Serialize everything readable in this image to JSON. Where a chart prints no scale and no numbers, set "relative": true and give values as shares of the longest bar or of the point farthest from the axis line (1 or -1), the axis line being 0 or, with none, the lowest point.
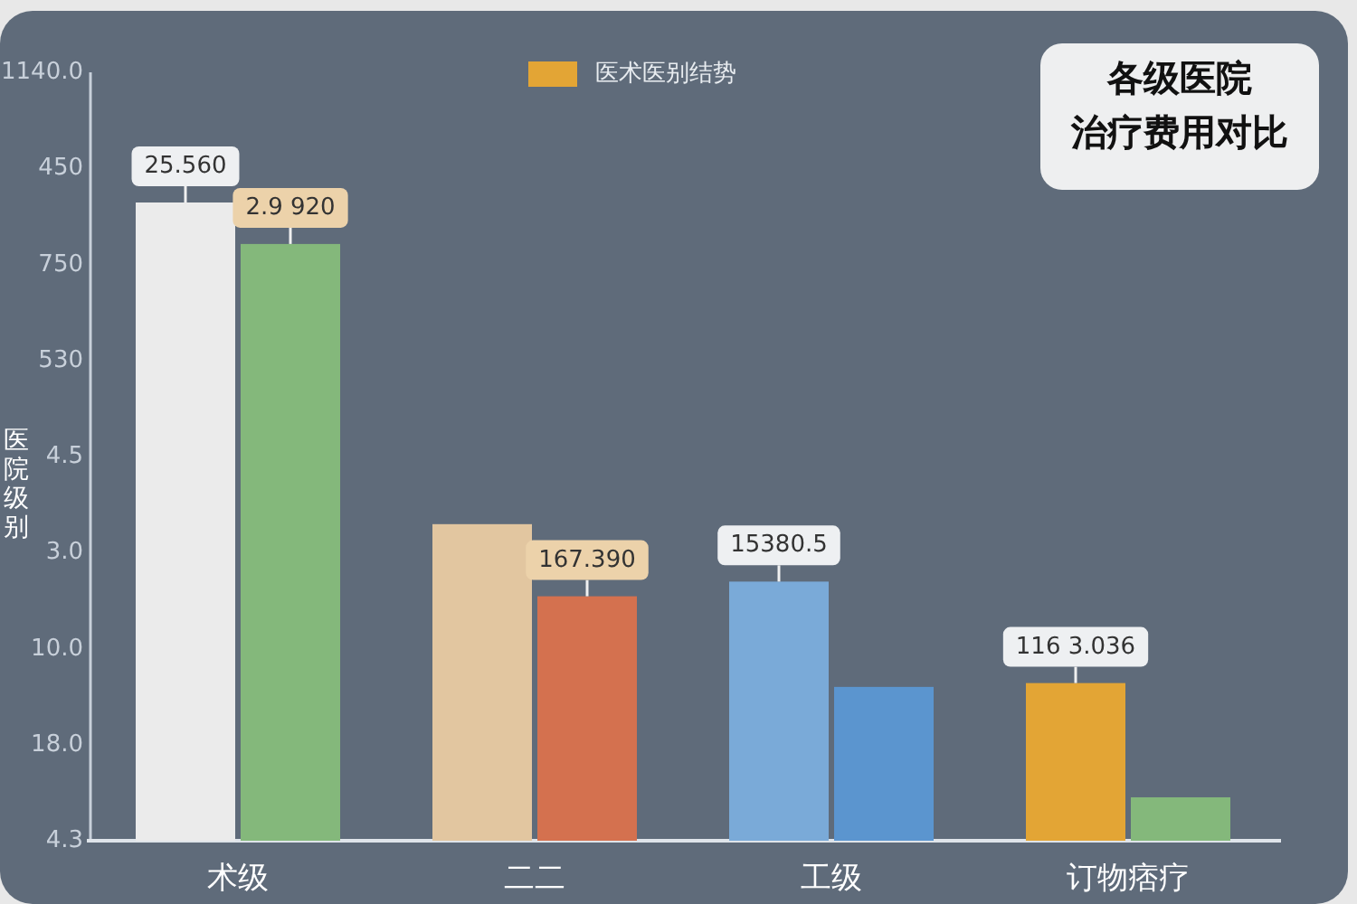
{
  "chart_data": {
    "type": "bar",
    "title": "各级医院",
    "subtitle": "治疗费用对比",
    "ylabel": "医院级别",
    "categories": [
      "术级",
      "二二",
      "工级",
      "订物痞疗"
    ],
    "relative": true,
    "annotations": [
      "4.3",
      "18.0",
      "10.0",
      "3.0",
      "4.5",
      "530",
      "750",
      "450",
      "1140.0",
      {
        "text": "25.560",
        "x": "术级",
        "y": 1
      },
      {
        "text": "2.9 920",
        "x": "术级",
        "y": 0.935
      },
      {
        "text": "167.390",
        "x": "二二",
        "y": 0.383
      },
      {
        "text": "15380.5",
        "x": "工级",
        "y": 0.406
      },
      {
        "text": "116 3.036",
        "x": "订物痞疗",
        "y": 0.247
      }
    ],
    "series": [
      {
        "name": "医术医别结势",
        "color": "#e3a535",
        "colors": [
          "#ebebeb",
          "#e2c6a0",
          "#7aaad8",
          "#e3a535"
        ],
        "values": [
          1,
          0.496,
          0.406,
          0.247
        ]
      },
      {
        "colors": [
          "#84b87b",
          "#d4714f",
          "#5b95cf",
          "#84b87b"
        ],
        "values": [
          0.935,
          0.383,
          0.241,
          0.068
        ]
      }
    ],
    "legend": "top"
  }
}
